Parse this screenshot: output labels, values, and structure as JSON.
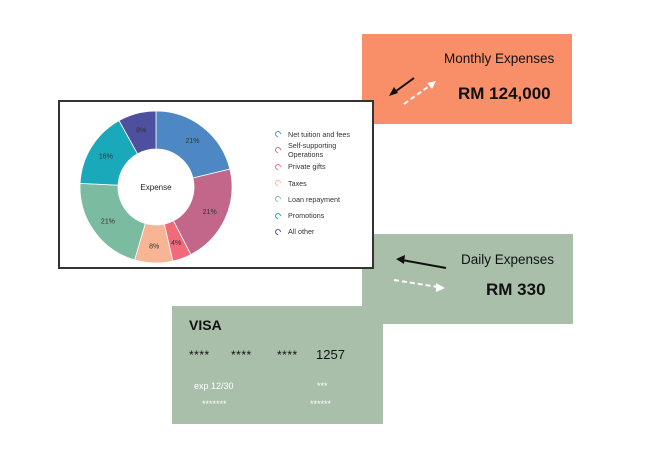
{
  "monthly": {
    "title": "Monthly Expenses",
    "amount": "RM 124,000",
    "color": "#f88f68"
  },
  "daily": {
    "title": "Daily Expenses",
    "amount": "RM 330",
    "color": "#a9bfaa"
  },
  "card": {
    "brand": "VISA",
    "groups": [
      "****",
      "****",
      "****"
    ],
    "last4": "1257",
    "expiry": "exp 12/30",
    "cvv": "***",
    "holder_left": "*******",
    "holder_right": "******"
  },
  "chart_data": {
    "type": "pie",
    "center_label": "Expense",
    "categories": [
      "Net tuition and fees",
      "Self-supporting Operations",
      "Private gifts",
      "Taxes",
      "Loan repayment",
      "Promotions",
      "All other"
    ],
    "values": [
      21,
      21,
      4,
      8,
      21,
      16,
      8
    ],
    "labels": [
      "21%",
      "21%",
      "4%",
      "8%",
      "21%",
      "16%",
      "8%"
    ],
    "colors": [
      "#4e88c4",
      "#c2678a",
      "#f16a7a",
      "#f7b596",
      "#7bbba0",
      "#1aa8bb",
      "#4f4f9f"
    ]
  }
}
